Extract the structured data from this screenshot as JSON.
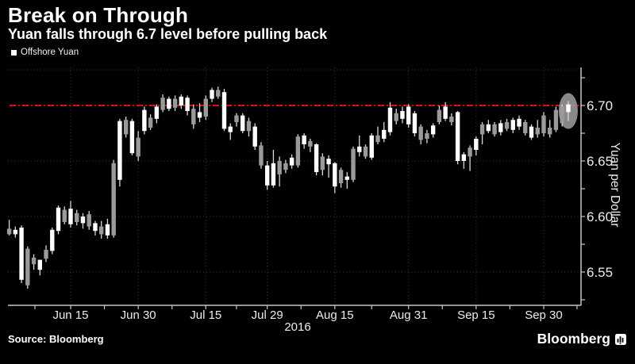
{
  "header": {
    "title": "Break on Through",
    "subtitle": "Yuan falls through 6.7 level before pulling back"
  },
  "legend": {
    "label": "Offshore Yuan",
    "swatch_color": "#ffffff"
  },
  "footer": {
    "source": "Source: Bloomberg",
    "brand": "Bloomberg"
  },
  "colors": {
    "background": "#000000",
    "text": "#ffffff",
    "tick_text": "#ececec",
    "axis": "#c6c6c6",
    "grid": "#3e3e3e",
    "threshold": "#dd0d0d",
    "candle_white": "#ffffff",
    "candle_gray": "#9a9a9a",
    "wick": "#d8d8d8",
    "highlight_ellipse": "#a0a0a0"
  },
  "chart_data": {
    "type": "candlestick",
    "series_name": "Offshore Yuan",
    "title": "Break on Through",
    "subtitle": "Yuan falls through 6.7 level before pulling back",
    "ylabel": "Yuan per Dollar",
    "year_label": "2016",
    "ylim": [
      6.52,
      6.734
    ],
    "grid": true,
    "threshold_value": 6.7,
    "threshold_style": "red dash-dot horizontal line",
    "y_tick_labels": [
      "6.70",
      "6.65",
      "6.60",
      "6.55"
    ],
    "y_tick_values": [
      6.7,
      6.65,
      6.6,
      6.55
    ],
    "y_minor_tick_step": 0.025,
    "x_tick_labels": [
      "Jun 15",
      "Jun 30",
      "Jul 15",
      "Jul 29",
      "Aug 15",
      "Aug 31",
      "Sep 15",
      "Sep 30"
    ],
    "x_tick_indices": [
      10,
      21,
      32,
      42,
      53,
      65,
      76,
      87
    ],
    "highlight_last_candle": true,
    "candle_format": [
      "date",
      "high",
      "low",
      "body_top",
      "body_bottom",
      "fill(w=white solid, g=gray)"
    ],
    "candles": [
      [
        "Jun 1",
        6.597,
        6.583,
        6.589,
        6.584,
        "g"
      ],
      [
        "Jun 2",
        6.591,
        6.581,
        6.588,
        6.584,
        "w"
      ],
      [
        "Jun 3",
        6.592,
        6.54,
        6.59,
        6.543,
        "w"
      ],
      [
        "Jun 6",
        6.573,
        6.535,
        6.571,
        6.538,
        "g"
      ],
      [
        "Jun 7",
        6.566,
        6.552,
        6.563,
        6.557,
        "g"
      ],
      [
        "Jun 8",
        6.561,
        6.547,
        6.561,
        6.552,
        "w"
      ],
      [
        "Jun 9",
        6.574,
        6.559,
        6.57,
        6.562,
        "g"
      ],
      [
        "Jun 10",
        6.59,
        6.566,
        6.588,
        6.569,
        "w"
      ],
      [
        "Jun 13",
        6.61,
        6.584,
        6.608,
        6.587,
        "w"
      ],
      [
        "Jun 14",
        6.609,
        6.593,
        6.606,
        6.595,
        "g"
      ],
      [
        "Jun 15",
        6.614,
        6.59,
        6.607,
        6.593,
        "w"
      ],
      [
        "Jun 16",
        6.606,
        6.592,
        6.603,
        6.595,
        "g"
      ],
      [
        "Jun 17",
        6.603,
        6.589,
        6.6,
        6.594,
        "w"
      ],
      [
        "Jun 20",
        6.605,
        6.588,
        6.602,
        6.591,
        "g"
      ],
      [
        "Jun 21",
        6.596,
        6.583,
        6.594,
        6.587,
        "w"
      ],
      [
        "Jun 22",
        6.596,
        6.58,
        6.591,
        6.584,
        "g"
      ],
      [
        "Jun 23",
        6.598,
        6.58,
        6.593,
        6.583,
        "w"
      ],
      [
        "Jun 24",
        6.651,
        6.581,
        6.648,
        6.583,
        "g"
      ],
      [
        "Jun 27",
        6.688,
        6.627,
        6.686,
        6.633,
        "w"
      ],
      [
        "Jun 28",
        6.69,
        6.671,
        6.687,
        6.674,
        "g"
      ],
      [
        "Jun 29",
        6.688,
        6.655,
        6.686,
        6.657,
        "w"
      ],
      [
        "Jun 30",
        6.677,
        6.65,
        6.671,
        6.654,
        "g"
      ],
      [
        "Jul 1",
        6.699,
        6.674,
        6.696,
        6.677,
        "w"
      ],
      [
        "Jul 4",
        6.692,
        6.678,
        6.689,
        6.68,
        "g"
      ],
      [
        "Jul 5",
        6.701,
        6.684,
        6.699,
        6.688,
        "w"
      ],
      [
        "Jul 6",
        6.71,
        6.694,
        6.707,
        6.696,
        "g"
      ],
      [
        "Jul 7",
        6.708,
        6.695,
        6.706,
        6.697,
        "w"
      ],
      [
        "Jul 8",
        6.709,
        6.695,
        6.706,
        6.698,
        "g"
      ],
      [
        "Jul 11",
        6.71,
        6.697,
        6.708,
        6.7,
        "w"
      ],
      [
        "Jul 12",
        6.709,
        6.691,
        6.707,
        6.695,
        "w"
      ],
      [
        "Jul 13",
        6.701,
        6.679,
        6.697,
        6.683,
        "g"
      ],
      [
        "Jul 14",
        6.702,
        6.685,
        6.694,
        6.689,
        "w"
      ],
      [
        "Jul 15",
        6.709,
        6.687,
        6.706,
        6.69,
        "g"
      ],
      [
        "Jul 18",
        6.716,
        6.703,
        6.714,
        6.706,
        "w"
      ],
      [
        "Jul 19",
        6.717,
        6.706,
        6.714,
        6.708,
        "g"
      ],
      [
        "Jul 20",
        6.715,
        6.677,
        6.712,
        6.679,
        "w"
      ],
      [
        "Jul 21",
        6.684,
        6.669,
        6.681,
        6.676,
        "w"
      ],
      [
        "Jul 22",
        6.693,
        6.681,
        6.691,
        6.685,
        "g"
      ],
      [
        "Jul 25",
        6.693,
        6.675,
        6.691,
        6.677,
        "w"
      ],
      [
        "Jul 26",
        6.689,
        6.672,
        6.686,
        6.677,
        "g"
      ],
      [
        "Jul 27",
        6.684,
        6.66,
        6.681,
        6.663,
        "w"
      ],
      [
        "Jul 28",
        6.667,
        6.643,
        6.664,
        6.646,
        "g"
      ],
      [
        "Jul 29",
        6.65,
        6.624,
        6.646,
        6.628,
        "w"
      ],
      [
        "Aug 1",
        6.66,
        6.626,
        6.648,
        6.628,
        "w"
      ],
      [
        "Aug 2",
        6.654,
        6.627,
        6.65,
        6.638,
        "g"
      ],
      [
        "Aug 3",
        6.651,
        6.639,
        6.648,
        6.642,
        "g"
      ],
      [
        "Aug 4",
        6.656,
        6.643,
        6.653,
        6.646,
        "w"
      ],
      [
        "Aug 5",
        6.674,
        6.644,
        6.672,
        6.646,
        "g"
      ],
      [
        "Aug 8",
        6.675,
        6.661,
        6.673,
        6.665,
        "w"
      ],
      [
        "Aug 9",
        6.67,
        6.658,
        6.668,
        6.663,
        "g"
      ],
      [
        "Aug 10",
        6.666,
        6.637,
        6.665,
        6.64,
        "w"
      ],
      [
        "Aug 11",
        6.657,
        6.637,
        6.654,
        6.642,
        "g"
      ],
      [
        "Aug 12",
        6.655,
        6.635,
        6.652,
        6.647,
        "w"
      ],
      [
        "Aug 15",
        6.649,
        6.621,
        6.648,
        6.627,
        "w"
      ],
      [
        "Aug 16",
        6.644,
        6.626,
        6.642,
        6.63,
        "g"
      ],
      [
        "Aug 17",
        6.64,
        6.625,
        6.636,
        6.633,
        "w"
      ],
      [
        "Aug 18",
        6.663,
        6.631,
        6.661,
        6.633,
        "g"
      ],
      [
        "Aug 19",
        6.673,
        6.654,
        6.663,
        6.658,
        "w"
      ],
      [
        "Aug 22",
        6.665,
        6.652,
        6.663,
        6.654,
        "g"
      ],
      [
        "Aug 23",
        6.675,
        6.651,
        6.673,
        6.653,
        "w"
      ],
      [
        "Aug 24",
        6.681,
        6.665,
        6.673,
        6.667,
        "g"
      ],
      [
        "Aug 25",
        6.685,
        6.667,
        6.678,
        6.67,
        "w"
      ],
      [
        "Aug 26",
        6.703,
        6.673,
        6.698,
        6.676,
        "w"
      ],
      [
        "Aug 29",
        6.697,
        6.683,
        6.693,
        6.686,
        "g"
      ],
      [
        "Aug 30",
        6.699,
        6.684,
        6.695,
        6.688,
        "w"
      ],
      [
        "Aug 31",
        6.701,
        6.68,
        6.699,
        6.683,
        "w"
      ],
      [
        "Sep 1",
        6.695,
        6.672,
        6.693,
        6.675,
        "w"
      ],
      [
        "Sep 2",
        6.683,
        6.665,
        6.681,
        6.669,
        "g"
      ],
      [
        "Sep 5",
        6.678,
        6.666,
        6.675,
        6.67,
        "g"
      ],
      [
        "Sep 6",
        6.684,
        6.671,
        6.682,
        6.674,
        "w"
      ],
      [
        "Sep 7",
        6.7,
        6.683,
        6.696,
        6.685,
        "g"
      ],
      [
        "Sep 8",
        6.703,
        6.686,
        6.699,
        6.688,
        "w"
      ],
      [
        "Sep 9",
        6.693,
        6.682,
        6.69,
        6.685,
        "g"
      ],
      [
        "Sep 12",
        6.695,
        6.647,
        6.694,
        6.65,
        "w"
      ],
      [
        "Sep 13",
        6.658,
        6.643,
        6.656,
        6.65,
        "w"
      ],
      [
        "Sep 14",
        6.664,
        6.641,
        6.662,
        6.654,
        "g"
      ],
      [
        "Sep 15",
        6.672,
        6.655,
        6.67,
        6.66,
        "w"
      ],
      [
        "Sep 16",
        6.685,
        6.665,
        6.683,
        6.674,
        "g"
      ],
      [
        "Sep 19",
        6.687,
        6.675,
        6.683,
        6.677,
        "w"
      ],
      [
        "Sep 20",
        6.685,
        6.672,
        6.683,
        6.674,
        "g"
      ],
      [
        "Sep 21",
        6.687,
        6.673,
        6.684,
        6.676,
        "w"
      ],
      [
        "Sep 22",
        6.688,
        6.677,
        6.685,
        6.679,
        "g"
      ],
      [
        "Sep 23",
        6.689,
        6.675,
        6.687,
        6.678,
        "w"
      ],
      [
        "Sep 26",
        6.691,
        6.678,
        6.688,
        6.681,
        "w"
      ],
      [
        "Sep 27",
        6.687,
        6.673,
        6.685,
        6.675,
        "g"
      ],
      [
        "Sep 28",
        6.683,
        6.669,
        6.681,
        6.671,
        "w"
      ],
      [
        "Sep 29",
        6.687,
        6.671,
        6.68,
        6.674,
        "g"
      ],
      [
        "Sep 30",
        6.694,
        6.672,
        6.691,
        6.675,
        "g"
      ],
      [
        "Oct 3",
        6.687,
        6.671,
        6.68,
        6.674,
        "g"
      ],
      [
        "Oct 4",
        6.699,
        6.676,
        6.696,
        6.678,
        "g"
      ],
      [
        "Oct 5",
        6.701,
        6.681,
        6.699,
        6.684,
        "g"
      ],
      [
        "Oct 6",
        6.704,
        6.686,
        6.701,
        6.694,
        "w"
      ]
    ]
  }
}
